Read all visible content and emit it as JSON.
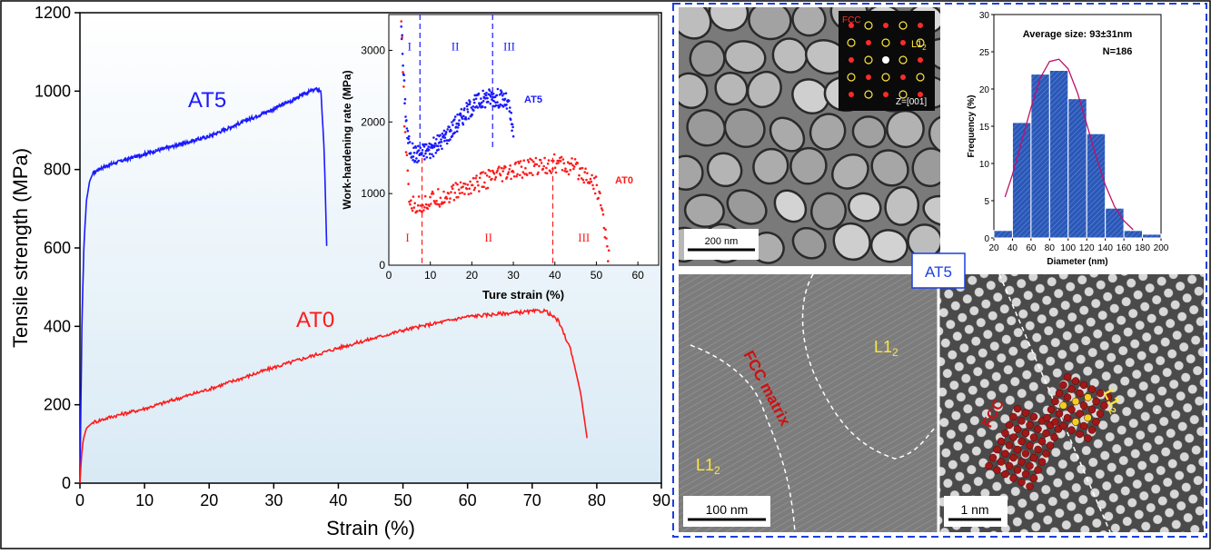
{
  "chart_data": [
    {
      "type": "line",
      "xlabel": "Strain (%)",
      "ylabel": "Tensile strength (MPa)",
      "xlim": [
        0,
        90
      ],
      "ylim": [
        0,
        1200
      ],
      "x_ticks": [
        0,
        10,
        20,
        30,
        40,
        50,
        60,
        70,
        80,
        90
      ],
      "y_ticks": [
        0,
        200,
        400,
        600,
        800,
        1000,
        1200
      ],
      "grid": false,
      "series": [
        {
          "name": "AT5",
          "color": "#1a1aff",
          "x": [
            0,
            0.3,
            0.6,
            1.0,
            1.5,
            2.0,
            3.0,
            5.0,
            10.0,
            15.0,
            20.0,
            25.0,
            30.0,
            33.0,
            35.0,
            36.5,
            37.3,
            37.8,
            38.2
          ],
          "y": [
            0,
            400,
            600,
            720,
            770,
            790,
            802,
            815,
            840,
            862,
            885,
            920,
            955,
            978,
            995,
            1005,
            1000,
            850,
            605
          ]
        },
        {
          "name": "AT0",
          "color": "#ff1a1a",
          "x": [
            0,
            0.2,
            0.5,
            1.0,
            2.0,
            5.0,
            10.0,
            20.0,
            30.0,
            40.0,
            50.0,
            60.0,
            65.0,
            70.0,
            72.0,
            74.0,
            76.0,
            77.5,
            78.5
          ],
          "y": [
            0,
            60,
            110,
            140,
            155,
            170,
            190,
            240,
            295,
            345,
            390,
            425,
            432,
            438,
            440,
            415,
            340,
            230,
            115
          ]
        }
      ],
      "annotations": [
        "AT5",
        "AT0"
      ]
    },
    {
      "type": "scatter",
      "xlabel": "Ture strain (%)",
      "ylabel": "Work-hardening rate (MPa)",
      "xlim": [
        0,
        65
      ],
      "ylim": [
        0,
        3500
      ],
      "x_ticks": [
        0,
        10,
        20,
        30,
        40,
        50,
        60
      ],
      "y_ticks": [
        0,
        1000,
        2000,
        3000
      ],
      "series": [
        {
          "name": "AT5",
          "color": "#1a1aff",
          "x": [
            3,
            3.5,
            4,
            4.5,
            5,
            6,
            7,
            8,
            10,
            12,
            14,
            16,
            18,
            20,
            22,
            24,
            26,
            28,
            29,
            30
          ],
          "y": [
            3400,
            2700,
            2200,
            1800,
            1650,
            1550,
            1560,
            1580,
            1620,
            1700,
            1820,
            1960,
            2100,
            2220,
            2300,
            2350,
            2340,
            2300,
            2200,
            1800
          ]
        },
        {
          "name": "AT0",
          "color": "#ff1a1a",
          "x": [
            3,
            3.5,
            4,
            5,
            6,
            8,
            10,
            15,
            20,
            25,
            30,
            35,
            40,
            45,
            48,
            50,
            51,
            52,
            53
          ],
          "y": [
            3400,
            2500,
            1700,
            900,
            820,
            850,
            900,
            1000,
            1120,
            1220,
            1300,
            1380,
            1420,
            1350,
            1250,
            1100,
            900,
            500,
            100
          ]
        }
      ],
      "vlines": [
        {
          "series": "AT5",
          "x": [
            7.5,
            25
          ]
        },
        {
          "series": "AT0",
          "x": [
            8,
            39.5
          ]
        }
      ],
      "stage_labels": {
        "AT5": [
          {
            "x": 5,
            "y": 3000,
            "text": "I"
          },
          {
            "x": 16,
            "y": 3000,
            "text": "II"
          },
          {
            "x": 29,
            "y": 3000,
            "text": "III"
          }
        ],
        "AT0": [
          {
            "x": 4.5,
            "y": 330,
            "text": "I"
          },
          {
            "x": 24,
            "y": 330,
            "text": "II"
          },
          {
            "x": 47,
            "y": 330,
            "text": "III"
          }
        ]
      },
      "annotations": [
        "AT5",
        "AT0"
      ]
    },
    {
      "type": "bar",
      "xlabel": "Diameter (nm)",
      "ylabel": "Frequency (%)",
      "xlim": [
        20,
        200
      ],
      "ylim": [
        0,
        30
      ],
      "x_ticks": [
        20,
        40,
        60,
        80,
        100,
        120,
        140,
        160,
        180,
        200
      ],
      "y_ticks": [
        0,
        5,
        10,
        15,
        20,
        25,
        30
      ],
      "bins": [
        [
          20,
          40
        ],
        [
          40,
          60
        ],
        [
          60,
          80
        ],
        [
          80,
          100
        ],
        [
          100,
          120
        ],
        [
          120,
          140
        ],
        [
          140,
          160
        ],
        [
          160,
          180
        ],
        [
          180,
          200
        ]
      ],
      "values": [
        1.0,
        15.5,
        22.0,
        22.5,
        18.7,
        14.0,
        4.0,
        1.0,
        0.5
      ],
      "fit": {
        "x": [
          32,
          40,
          50,
          60,
          70,
          80,
          90,
          100,
          110,
          120,
          130,
          140,
          150,
          160,
          170
        ],
        "y": [
          5.5,
          8.5,
          13.0,
          17.5,
          21.5,
          23.7,
          24.0,
          22.7,
          19.5,
          15.3,
          11.0,
          7.1,
          4.2,
          2.3,
          1.1
        ]
      },
      "annotations": [
        "Average size: 93±31nm",
        "N=186"
      ],
      "bar_color": "#2a58b8"
    }
  ],
  "labels": {
    "at5": "AT5",
    "at0": "AT0",
    "roman_1": "I",
    "roman_2": "II",
    "roman_3": "III",
    "hist_avg": "Average size: 93±31nm",
    "hist_n": "N=186",
    "fcc_label": "FCC",
    "l12_base": "L1",
    "l12_sub": "2",
    "zone_axis": "Z=[001]",
    "scale_200nm": "200 nm",
    "panel_tag": "AT5",
    "fcc_matrix": "FCC matrix",
    "scale_100nm": "100 nm",
    "scale_1nm": "1 nm"
  },
  "colors": {
    "at5": "#1a1aff",
    "at0": "#ff1a1a",
    "panel_border": "#1a3fe0",
    "chart_bg": "#e6f1f8"
  }
}
